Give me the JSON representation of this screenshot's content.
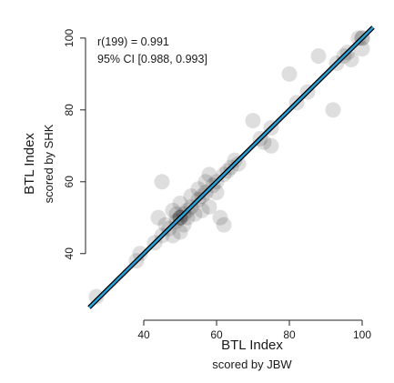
{
  "chart_data": {
    "type": "scatter",
    "title": "",
    "xlabel": "BTL Index",
    "xlabel_sub": "scored by JBW",
    "ylabel": "BTL Index",
    "ylabel_sub": "scored by SHK",
    "xlim": [
      25,
      103
    ],
    "ylim": [
      25,
      103
    ],
    "x_ticks": [
      40,
      60,
      80,
      100
    ],
    "y_ticks": [
      40,
      60,
      80,
      100
    ],
    "grid": false,
    "annotation_lines": [
      "r(199) = 0.991",
      "95% CI [0.988, 0.993]"
    ],
    "fit_line": {
      "slope": 1.0,
      "intercept": 0.0,
      "color": "#29a3dc",
      "band_color": "#000000"
    },
    "point_color": "#000000",
    "points": [
      {
        "x": 27,
        "y": 28
      },
      {
        "x": 38,
        "y": 38
      },
      {
        "x": 39,
        "y": 40
      },
      {
        "x": 43,
        "y": 43
      },
      {
        "x": 44,
        "y": 50
      },
      {
        "x": 45,
        "y": 45
      },
      {
        "x": 45,
        "y": 60
      },
      {
        "x": 46,
        "y": 48
      },
      {
        "x": 47,
        "y": 47
      },
      {
        "x": 48,
        "y": 52
      },
      {
        "x": 48,
        "y": 45
      },
      {
        "x": 49,
        "y": 49
      },
      {
        "x": 49,
        "y": 51
      },
      {
        "x": 50,
        "y": 50
      },
      {
        "x": 50,
        "y": 50
      },
      {
        "x": 50,
        "y": 50
      },
      {
        "x": 50,
        "y": 46
      },
      {
        "x": 50,
        "y": 54
      },
      {
        "x": 51,
        "y": 51
      },
      {
        "x": 51,
        "y": 48
      },
      {
        "x": 52,
        "y": 52
      },
      {
        "x": 52,
        "y": 50
      },
      {
        "x": 53,
        "y": 53
      },
      {
        "x": 53,
        "y": 56
      },
      {
        "x": 54,
        "y": 51
      },
      {
        "x": 55,
        "y": 55
      },
      {
        "x": 55,
        "y": 58
      },
      {
        "x": 56,
        "y": 52
      },
      {
        "x": 56,
        "y": 56
      },
      {
        "x": 57,
        "y": 60
      },
      {
        "x": 57,
        "y": 57
      },
      {
        "x": 58,
        "y": 53
      },
      {
        "x": 58,
        "y": 62
      },
      {
        "x": 59,
        "y": 59
      },
      {
        "x": 60,
        "y": 57
      },
      {
        "x": 60,
        "y": 60
      },
      {
        "x": 61,
        "y": 50
      },
      {
        "x": 62,
        "y": 62
      },
      {
        "x": 62,
        "y": 48
      },
      {
        "x": 63,
        "y": 63
      },
      {
        "x": 64,
        "y": 64
      },
      {
        "x": 65,
        "y": 66
      },
      {
        "x": 66,
        "y": 65
      },
      {
        "x": 70,
        "y": 77
      },
      {
        "x": 72,
        "y": 72
      },
      {
        "x": 73,
        "y": 71
      },
      {
        "x": 75,
        "y": 75
      },
      {
        "x": 75,
        "y": 70
      },
      {
        "x": 80,
        "y": 90
      },
      {
        "x": 82,
        "y": 82
      },
      {
        "x": 85,
        "y": 85
      },
      {
        "x": 88,
        "y": 95
      },
      {
        "x": 92,
        "y": 80
      },
      {
        "x": 93,
        "y": 93
      },
      {
        "x": 95,
        "y": 95
      },
      {
        "x": 96,
        "y": 96
      },
      {
        "x": 97,
        "y": 94
      },
      {
        "x": 99,
        "y": 100
      },
      {
        "x": 100,
        "y": 100
      },
      {
        "x": 100,
        "y": 100
      },
      {
        "x": 100,
        "y": 97
      }
    ]
  }
}
